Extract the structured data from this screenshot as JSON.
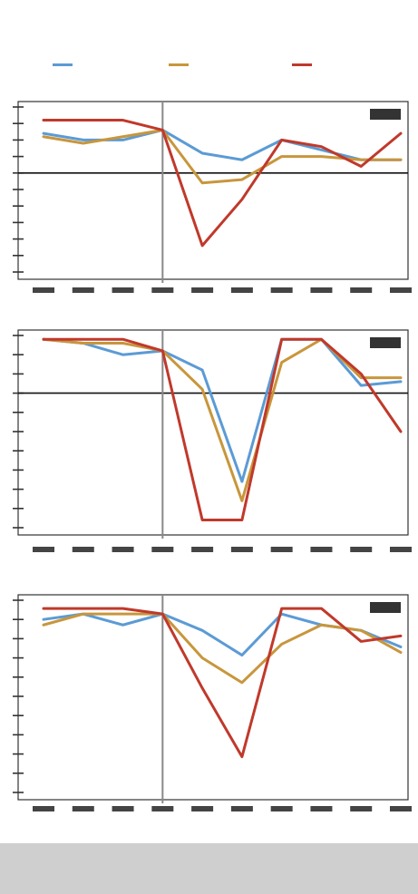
{
  "title": "",
  "legend": [
    {
      "name": "",
      "color": "#5b9bd5"
    },
    {
      "name": "",
      "color": "#c8963c"
    },
    {
      "name": "",
      "color": "#c0392b"
    }
  ],
  "footnote": "",
  "source": "",
  "chart_data": [
    {
      "type": "line",
      "title": "",
      "badge": "",
      "categories": [
        "",
        "",
        "",
        "",
        "",
        "",
        "",
        "",
        "",
        ""
      ],
      "ylim": [
        -3,
        2
      ],
      "zero_line": true,
      "marker_index": 3,
      "series": [
        {
          "color": "#5b9bd5",
          "values": [
            1.2,
            1.0,
            1.0,
            1.3,
            0.6,
            0.4,
            1.0,
            0.7,
            0.4,
            0.4
          ]
        },
        {
          "color": "#c8963c",
          "values": [
            1.1,
            0.9,
            1.1,
            1.3,
            -0.3,
            -0.2,
            0.5,
            0.5,
            0.4,
            0.4
          ]
        },
        {
          "color": "#c0392b",
          "values": [
            1.6,
            1.6,
            1.6,
            1.3,
            -2.2,
            -0.8,
            1.0,
            0.8,
            0.2,
            1.2
          ]
        }
      ]
    },
    {
      "type": "line",
      "title": "",
      "badge": "",
      "categories": [
        "",
        "",
        "",
        "",
        "",
        "",
        "",
        "",
        "",
        ""
      ],
      "ylim": [
        -3.5,
        1.5
      ],
      "zero_line": true,
      "marker_index": 3,
      "series": [
        {
          "color": "#5b9bd5",
          "values": [
            1.4,
            1.3,
            1.0,
            1.1,
            0.6,
            -2.3,
            1.4,
            1.4,
            0.2,
            0.3
          ]
        },
        {
          "color": "#c8963c",
          "values": [
            1.4,
            1.3,
            1.3,
            1.1,
            0.1,
            -2.8,
            0.8,
            1.4,
            0.4,
            0.4
          ]
        },
        {
          "color": "#c0392b",
          "values": [
            1.4,
            1.4,
            1.4,
            1.1,
            -3.3,
            -3.3,
            1.4,
            1.4,
            0.5,
            -1.0
          ]
        }
      ]
    },
    {
      "type": "line",
      "title": "",
      "badge": "",
      "categories": [
        "",
        "",
        "",
        "",
        "",
        "",
        "",
        "",
        "",
        ""
      ],
      "ylim": [
        -5.5,
        1.5
      ],
      "zero_line": false,
      "marker_index": 3,
      "series": [
        {
          "color": "#5b9bd5",
          "values": [
            0.8,
            1.0,
            0.6,
            1.0,
            0.4,
            -0.5,
            1.0,
            0.6,
            0.4,
            -0.2
          ]
        },
        {
          "color": "#c8963c",
          "values": [
            0.6,
            1.0,
            1.0,
            1.0,
            -0.6,
            -1.5,
            -0.1,
            0.6,
            0.4,
            -0.4
          ]
        },
        {
          "color": "#c0392b",
          "values": [
            1.2,
            1.2,
            1.2,
            1.0,
            -1.7,
            -4.2,
            1.2,
            1.2,
            0.0,
            0.2
          ]
        }
      ]
    }
  ]
}
